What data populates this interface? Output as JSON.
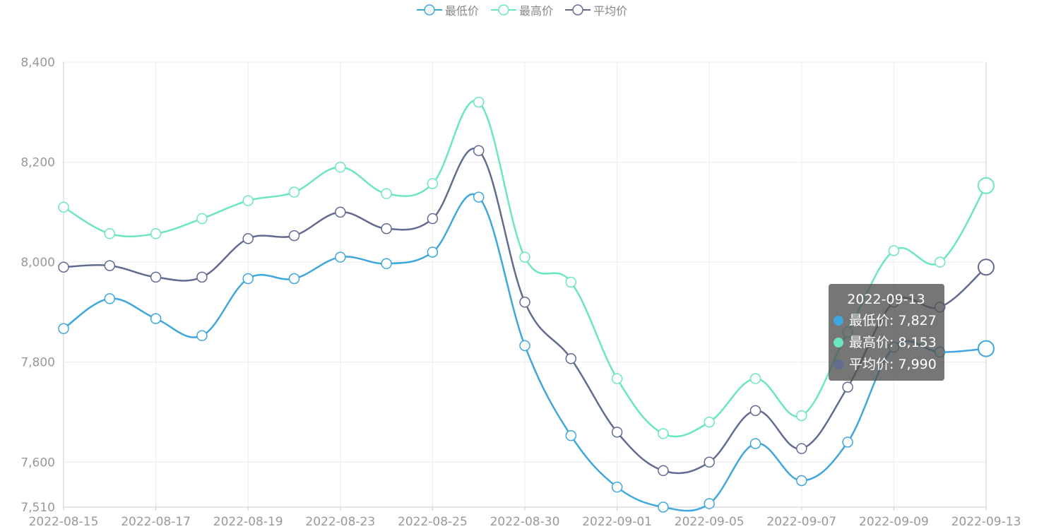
{
  "chart_data": {
    "type": "line",
    "title": "",
    "xlabel": "",
    "ylabel": "",
    "smooth": true,
    "grid": true,
    "legend_position": "top-center",
    "x": [
      "2022-08-15",
      "2022-08-16",
      "2022-08-17",
      "2022-08-18",
      "2022-08-19",
      "2022-08-22",
      "2022-08-23",
      "2022-08-24",
      "2022-08-25",
      "2022-08-26",
      "2022-08-30",
      "2022-08-31",
      "2022-09-01",
      "2022-09-02",
      "2022-09-05",
      "2022-09-06",
      "2022-09-07",
      "2022-09-08",
      "2022-09-09",
      "2022-09-12",
      "2022-09-13"
    ],
    "x_tick_labels": [
      "2022-08-15",
      "2022-08-17",
      "2022-08-19",
      "2022-08-23",
      "2022-08-25",
      "2022-08-30",
      "2022-09-01",
      "2022-09-05",
      "2022-09-07",
      "2022-09-09",
      "2022-09-13"
    ],
    "ylim": [
      7510,
      8400
    ],
    "y_ticks": [
      7510,
      7600,
      7800,
      8000,
      8200,
      8400
    ],
    "y_tick_labels": [
      "7,510",
      "7,600",
      "7,800",
      "8,000",
      "8,200",
      "8,400"
    ],
    "series": [
      {
        "name": "最低价",
        "color": "#3fa7dc",
        "values": [
          7867,
          7927,
          7887,
          7853,
          7967,
          7967,
          8010,
          7997,
          8020,
          8130,
          7833,
          7653,
          7550,
          7510,
          7517,
          7637,
          7563,
          7640,
          7830,
          7820,
          7827
        ]
      },
      {
        "name": "最高价",
        "color": "#6be6c1",
        "values": [
          8110,
          8057,
          8057,
          8087,
          8123,
          8140,
          8190,
          8137,
          8157,
          8320,
          8010,
          7960,
          7767,
          7657,
          7680,
          7767,
          7693,
          7860,
          8023,
          8000,
          8153
        ]
      },
      {
        "name": "平均价",
        "color": "#626c91",
        "values": [
          7990,
          7993,
          7970,
          7970,
          8047,
          8053,
          8100,
          8067,
          8087,
          8223,
          7920,
          7807,
          7660,
          7583,
          7600,
          7703,
          7627,
          7750,
          7920,
          7910,
          7990
        ]
      }
    ]
  },
  "tooltip": {
    "title": "2022-09-13",
    "rows": [
      {
        "label": "最低价: 7,827",
        "color": "#3fa7dc"
      },
      {
        "label": "最高价: 8,153",
        "color": "#6be6c1"
      },
      {
        "label": "平均价: 7,990",
        "color": "#626c91"
      }
    ]
  }
}
